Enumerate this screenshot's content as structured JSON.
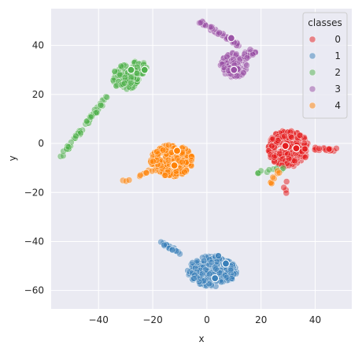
{
  "chart_data": {
    "type": "scatter",
    "title": "",
    "xlabel": "x",
    "ylabel": "y",
    "xlim": [
      -57.5,
      53.5
    ],
    "ylim": [
      -67.5,
      55
    ],
    "xticks": [
      -40,
      -20,
      0,
      20,
      40
    ],
    "yticks": [
      40,
      20,
      0,
      -20,
      -40,
      -60
    ],
    "grid": true,
    "background": "#eaeaf2",
    "legend": {
      "title": "classes",
      "placement": "top-right",
      "entries": [
        "0",
        "1",
        "2",
        "3",
        "4"
      ]
    },
    "series": [
      {
        "name": "0",
        "color": "#e41a1c",
        "clusters": [
          {
            "cx": 30,
            "cy": -2,
            "r": 7.5,
            "n": 240
          },
          {
            "line": [
              [
                36,
                -2
              ],
              [
                48,
                -2.5
              ]
            ],
            "n": 22
          },
          {
            "line": [
              [
                29,
                -14
              ],
              [
                29,
                -20
              ]
            ],
            "n": 4
          }
        ]
      },
      {
        "name": "1",
        "color": "#377eb8",
        "clusters": [
          {
            "cx": 2,
            "cy": -52,
            "r": 6.5,
            "rx": 1.4,
            "n": 230
          },
          {
            "line": [
              [
                -17,
                -40
              ],
              [
                -10,
                -45
              ]
            ],
            "n": 18
          }
        ]
      },
      {
        "name": "2",
        "color": "#4daf4a",
        "clusters": [
          {
            "cx": -30,
            "cy": 27,
            "r": 5,
            "n": 150
          },
          {
            "cx": -25,
            "cy": 31,
            "r": 3,
            "n": 40
          },
          {
            "line": [
              [
                -53.5,
                -5
              ],
              [
                -37,
                19
              ]
            ],
            "n": 55
          },
          {
            "line": [
              [
                18,
                -12
              ],
              [
                28,
                -10
              ]
            ],
            "n": 10
          }
        ]
      },
      {
        "name": "3",
        "color": "#984ea3",
        "clusters": [
          {
            "line": [
              [
                -3,
                50
              ],
              [
                12,
                40
              ]
            ],
            "n": 40
          },
          {
            "cx": 10,
            "cy": 32,
            "r": 5,
            "n": 110
          },
          {
            "cx": 16,
            "cy": 36,
            "r": 2.5,
            "n": 20
          }
        ]
      },
      {
        "name": "4",
        "color": "#ff7f00",
        "clusters": [
          {
            "cx": -13,
            "cy": -7,
            "r": 6.5,
            "rx": 1.2,
            "n": 220
          },
          {
            "line": [
              [
                -32,
                -16
              ],
              [
                -20,
                -11
              ]
            ],
            "n": 10
          },
          {
            "line": [
              [
                23,
                -17
              ],
              [
                27,
                -11
              ]
            ],
            "n": 8
          }
        ]
      }
    ],
    "highlighted_points": [
      {
        "class": "0",
        "x": 29,
        "y": -1
      },
      {
        "class": "0",
        "x": 33,
        "y": -2
      },
      {
        "class": "1",
        "x": 3,
        "y": -55
      },
      {
        "class": "1",
        "x": 7,
        "y": -49
      },
      {
        "class": "2",
        "x": -28,
        "y": 30
      },
      {
        "class": "2",
        "x": -23,
        "y": 30
      },
      {
        "class": "3",
        "x": 9,
        "y": 43
      },
      {
        "class": "3",
        "x": 10,
        "y": 30
      },
      {
        "class": "4",
        "x": -11,
        "y": -3
      },
      {
        "class": "4",
        "x": -12,
        "y": -9
      }
    ]
  }
}
